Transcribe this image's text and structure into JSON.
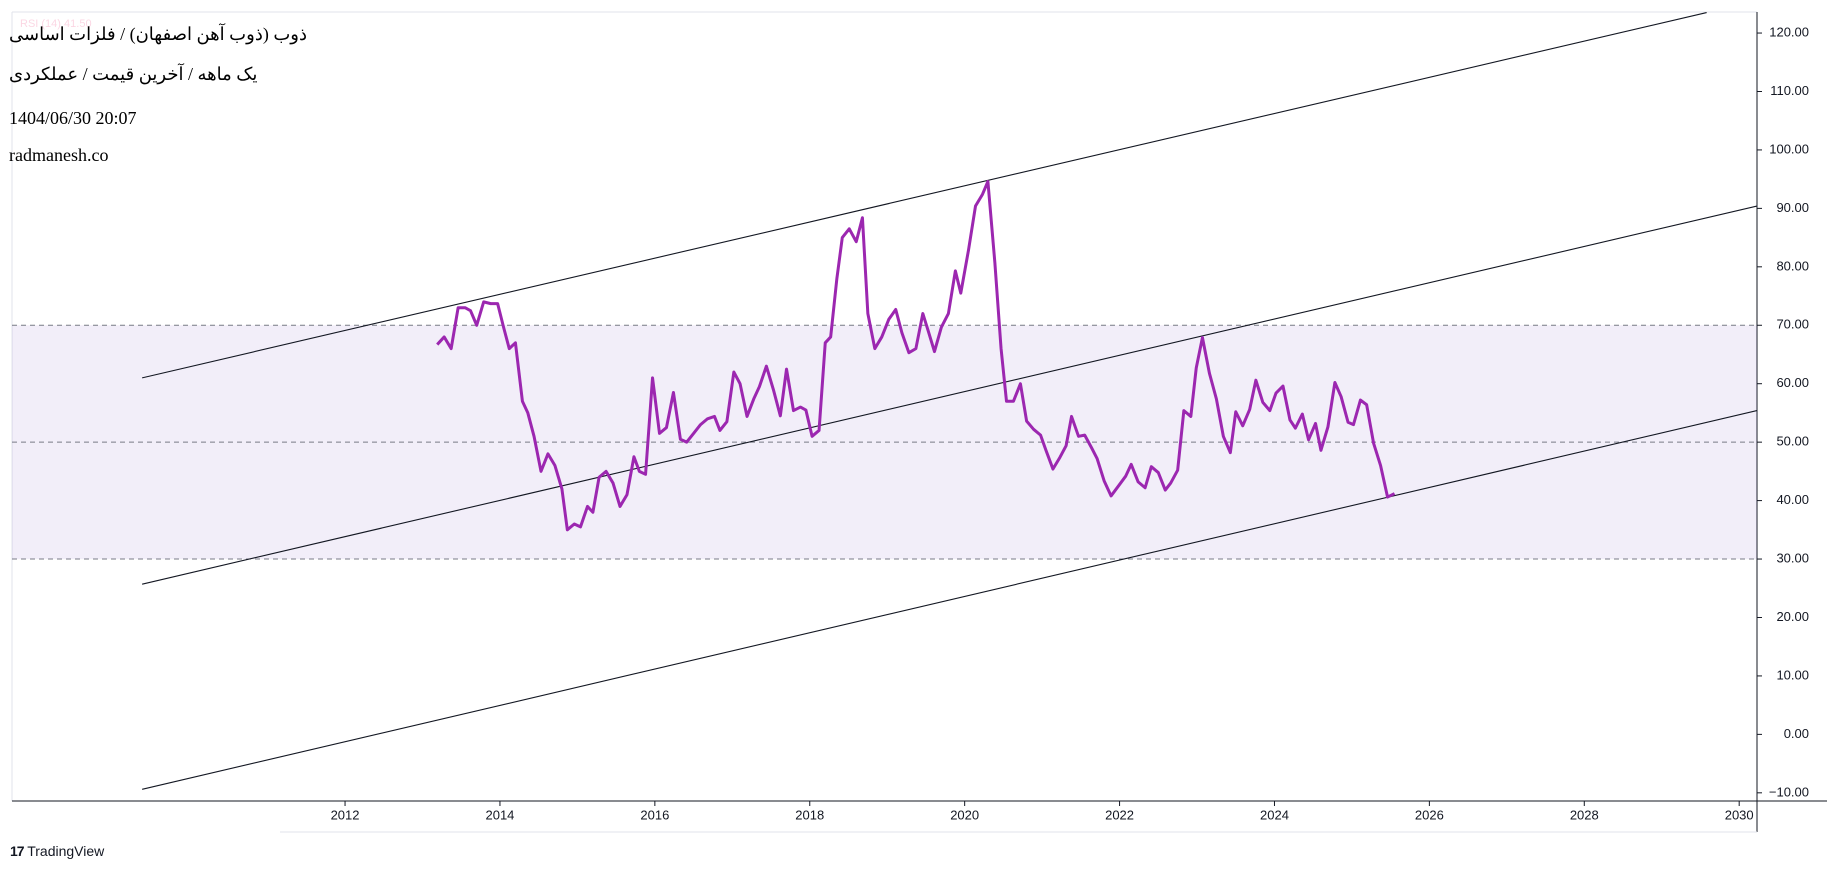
{
  "chart_data": {
    "type": "line",
    "header": {
      "title": "ذوب (ذوب آهن اصفهان) / فلزات اساسی",
      "subtitle": "یک ماهه / آخرین قیمت / عملکردی",
      "timestamp": "1404/06/30 20:07",
      "site": "radmanesh.co",
      "brand": "TradingView"
    },
    "series": [
      {
        "name": "RSI (14)",
        "color": "#9c27b0",
        "last_value": {
          "value": 41.5,
          "label": "41.50"
        },
        "x": [
          2013.19,
          2013.28,
          2013.37,
          2013.46,
          2013.55,
          2013.62,
          2013.7,
          2013.79,
          2013.88,
          2013.97,
          2014.05,
          2014.12,
          2014.2,
          2014.29,
          2014.36,
          2014.44,
          2014.53,
          2014.62,
          2014.71,
          2014.8,
          2014.87,
          2014.96,
          2015.04,
          2015.13,
          2015.2,
          2015.28,
          2015.37,
          2015.46,
          2015.55,
          2015.64,
          2015.73,
          2015.8,
          2015.88,
          2015.97,
          2016.06,
          2016.15,
          2016.24,
          2016.33,
          2016.41,
          2016.5,
          2016.59,
          2016.68,
          2016.77,
          2016.84,
          2016.93,
          2017.02,
          2017.1,
          2017.19,
          2017.28,
          2017.35,
          2017.44,
          2017.53,
          2017.62,
          2017.7,
          2017.79,
          2017.88,
          2017.95,
          2018.03,
          2018.12,
          2018.2,
          2018.27,
          2018.35,
          2018.42,
          2018.51,
          2018.6,
          2018.68,
          2018.75,
          2018.84,
          2018.93,
          2019.02,
          2019.11,
          2019.19,
          2019.28,
          2019.37,
          2019.46,
          2019.53,
          2019.61,
          2019.7,
          2019.79,
          2019.88,
          2019.95,
          2020.05,
          2020.14,
          2020.23,
          2020.3,
          2020.39,
          2020.47,
          2020.54,
          2020.63,
          2020.72,
          2020.8,
          2020.89,
          2020.98,
          2021.05,
          2021.14,
          2021.23,
          2021.31,
          2021.38,
          2021.47,
          2021.55,
          2021.64,
          2021.71,
          2021.8,
          2021.89,
          2021.98,
          2022.08,
          2022.15,
          2022.24,
          2022.33,
          2022.41,
          2022.5,
          2022.59,
          2022.66,
          2022.75,
          2022.83,
          2022.92,
          2022.99,
          2023.07,
          2023.16,
          2023.25,
          2023.34,
          2023.43,
          2023.5,
          2023.59,
          2023.68,
          2023.76,
          2023.85,
          2023.94,
          2024.02,
          2024.11,
          2024.2,
          2024.27,
          2024.36,
          2024.44,
          2024.53,
          2024.6,
          2024.69,
          2024.78,
          2024.86,
          2024.95,
          2025.02,
          2025.11,
          2025.19,
          2025.28,
          2025.37,
          2025.46,
          2025.55
        ],
        "values": [
          66.7,
          68,
          66,
          73,
          73,
          72.5,
          70,
          74,
          73.7,
          73.7,
          69.5,
          66,
          67,
          57,
          55,
          51,
          45,
          48,
          46,
          42,
          35,
          36,
          35.5,
          39,
          38,
          44,
          45,
          43,
          39,
          41,
          47.5,
          45,
          44.5,
          61,
          51.5,
          52.5,
          58.5,
          50.5,
          50,
          51.5,
          53,
          54,
          54.4,
          52,
          53.5,
          62,
          60,
          54.4,
          57.5,
          59.5,
          63,
          59,
          54.5,
          62.5,
          55.4,
          56,
          55.5,
          51,
          52,
          67,
          68,
          78,
          85,
          86.5,
          84.3,
          88.4,
          72,
          66,
          68,
          71,
          72.7,
          68.7,
          65.3,
          66,
          72,
          69,
          65.5,
          69.7,
          72,
          79.3,
          75.5,
          82.9,
          90.4,
          92.4,
          94.6,
          80.7,
          66,
          57,
          57,
          60,
          53.6,
          52.2,
          51.2,
          48.6,
          45.4,
          47.4,
          49.4,
          54.4,
          51,
          51.2,
          49,
          47.2,
          43.4,
          40.8,
          42.4,
          44.2,
          46.2,
          43.2,
          42.2,
          45.8,
          44.8,
          41.8,
          43,
          45.2,
          55.4,
          54.4,
          62.7,
          67.9,
          61.8,
          57.4,
          51,
          48.2,
          55.2,
          52.8,
          55.6,
          60.6,
          56.8,
          55.4,
          58.4,
          59.6,
          53.8,
          52.4,
          54.8,
          50.4,
          53.2,
          48.6,
          52.6,
          60.2,
          57.8,
          53.4,
          53,
          57.2,
          56.4,
          49.8,
          46,
          40.6,
          41.2
        ]
      }
    ],
    "band": [
      30,
      70
    ],
    "band_color": "rgba(126,87,194,0.1)",
    "levels": [
      30,
      50,
      70
    ],
    "trend_lines": [
      {
        "x": [
          2009.38,
          2029.58
        ],
        "values": [
          61,
          123.5
        ]
      },
      {
        "x": [
          2009.38,
          2030.23
        ],
        "values": [
          25.7,
          90.4
        ]
      },
      {
        "x": [
          2009.38,
          2030.23
        ],
        "values": [
          -9.4,
          55.4
        ]
      }
    ],
    "xlim": [
      2007.7,
      2030.23
    ],
    "ylim": [
      -11.4,
      123.6
    ],
    "xticks": [
      2012,
      2014,
      2016,
      2018,
      2020,
      2022,
      2024,
      2026,
      2028,
      2030
    ],
    "yticks": [
      {
        "value": -10,
        "label": "−10.00"
      },
      {
        "value": 0,
        "label": "0.00"
      },
      {
        "value": 10,
        "label": "10.00"
      },
      {
        "value": 20,
        "label": "20.00"
      },
      {
        "value": 30,
        "label": "30.00"
      },
      {
        "value": 40,
        "label": "40.00"
      },
      {
        "value": 50,
        "label": "50.00"
      },
      {
        "value": 60,
        "label": "60.00"
      },
      {
        "value": 70,
        "label": "70.00"
      },
      {
        "value": 80,
        "label": "80.00"
      },
      {
        "value": 90,
        "label": "90.00"
      },
      {
        "value": 100,
        "label": "100.00"
      },
      {
        "value": 110,
        "label": "110.00"
      },
      {
        "value": 120,
        "label": "120.00"
      }
    ]
  }
}
